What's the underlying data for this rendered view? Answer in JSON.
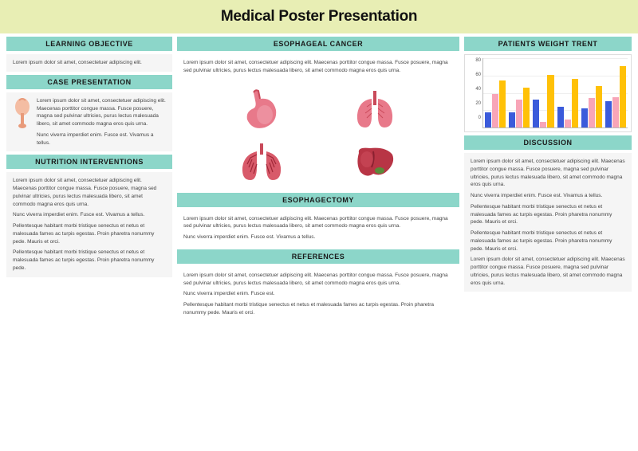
{
  "title": "Medical Poster Presentation",
  "title_bg": "#e8eeb4",
  "header_bg": "#8cd6c9",
  "body_bg": "#f5f5f5",
  "text_color": "#444444",
  "left": {
    "learning": {
      "title": "LEARNING OBJECTIVE",
      "p1": "Lorem ipsum dolor sit amet, consectetuer adipiscing elit."
    },
    "case": {
      "title": "CASE PRESENTATION",
      "p1": "Lorem ipsum dolor sit amet, consectetuer adipiscing elit. Maecenas porttitor congue massa. Fusce posuere, magna sed pulvinar ultricies, purus lectus malesuada libero, sit amet commodo magna eros quis urna.",
      "p2": "Nunc viverra imperdiet enim. Fusce est. Vivamus a tellus."
    },
    "nutrition": {
      "title": "NUTRITION INTERVENTIONS",
      "p1": "Lorem ipsum dolor sit amet, consectetuer adipiscing elit. Maecenas porttitor congue massa. Fusce posuere, magna sed pulvinar ultricies, purus lectus malesuada libero, sit amet commodo magna eros quis urna.",
      "p2": "Nunc viverra imperdiet enim. Fusce est. Vivamus a tellus.",
      "p3": "Pellentesque habitant morbi tristique senectus et netus et malesuada fames ac turpis egestas. Proin pharetra nonummy pede. Mauris et orci.",
      "p4": "Pellentesque habitant morbi tristique senectus et netus et malesuada fames ac turpis egestas. Proin pharetra nonummy pede."
    }
  },
  "mid": {
    "cancer": {
      "title": "ESOPHAGEAL CANCER",
      "p1": "Lorem ipsum dolor sit amet, consectetuer adipiscing elit. Maecenas porttitor congue massa. Fusce posuere, magna sed pulvinar ultricies, purus lectus malesuada libero, sit amet commodo magna eros quis urna."
    },
    "ectomy": {
      "title": "ESOPHAGECTOMY",
      "p1": "Lorem ipsum dolor sit amet, consectetuer adipiscing elit. Maecenas porttitor congue massa. Fusce posuere, magna sed pulvinar ultricies, purus lectus malesuada libero, sit amet commodo magna eros quis urna.",
      "p2": "Nunc viverra imperdiet enim. Fusce est. Vivamus a tellus."
    },
    "refs": {
      "title": "REFERENCES",
      "p1": "Lorem ipsum dolor sit amet, consectetuer adipiscing elit. Maecenas porttitor congue massa. Fusce posuere, magna sed pulvinar ultricies, purus lectus malesuada libero, sit amet commodo magna eros quis urna.",
      "p2": "Nunc viverra imperdiet enim. Fusce est.",
      "p3": "Pellentesque habitant morbi tristique senectus et netus et malesuada fames ac turpis egestas. Proin pharetra nonummy pede. Mauris et orci."
    }
  },
  "right": {
    "chart": {
      "title": "PATIENTS WEIGHT TRENT",
      "type": "grouped-bar",
      "ylim": [
        0,
        100
      ],
      "yticks": [
        "80",
        "60",
        "40",
        "20",
        "0"
      ],
      "series_colors": [
        "#3b5bdb",
        "#f8a5b8",
        "#ffc107"
      ],
      "groups": [
        [
          22,
          48,
          68
        ],
        [
          22,
          40,
          58
        ],
        [
          40,
          8,
          76
        ],
        [
          30,
          12,
          70
        ],
        [
          28,
          42,
          60
        ],
        [
          38,
          44,
          88
        ]
      ],
      "grid_color": "#eeeeee",
      "axis_color": "#bbbbbb"
    },
    "discussion": {
      "title": "DISCUSSION",
      "p1": "Lorem ipsum dolor sit amet, consectetuer adipiscing elit. Maecenas porttitor congue massa. Fusce posuere, magna sed pulvinar ultricies, purus lectus malesuada libero, sit amet commodo magna eros quis urna.",
      "p2": "Nunc viverra imperdiet enim. Fusce est. Vivamus a tellus.",
      "p3": "Pellentesque habitant morbi tristique senectus et netus et malesuada fames ac turpis egestas. Proin pharetra nonummy pede. Mauris et orci.",
      "p4": "Pellentesque habitant morbi tristique senectus et netus et malesuada fames ac turpis egestas. Proin pharetra nonummy pede. Mauris et orci.",
      "p5": "Lorem ipsum dolor sit amet, consectetuer adipiscing elit. Maecenas porttitor congue massa. Fusce posuere, magna sed pulvinar ultricies, purus lectus malesuada libero, sit amet commodo magna eros quis urna."
    }
  },
  "organ_colors": {
    "stomach": "#e8798a",
    "lungs": "#d85a6a",
    "broccoli": "#c94a5a",
    "liver": "#b83545"
  }
}
